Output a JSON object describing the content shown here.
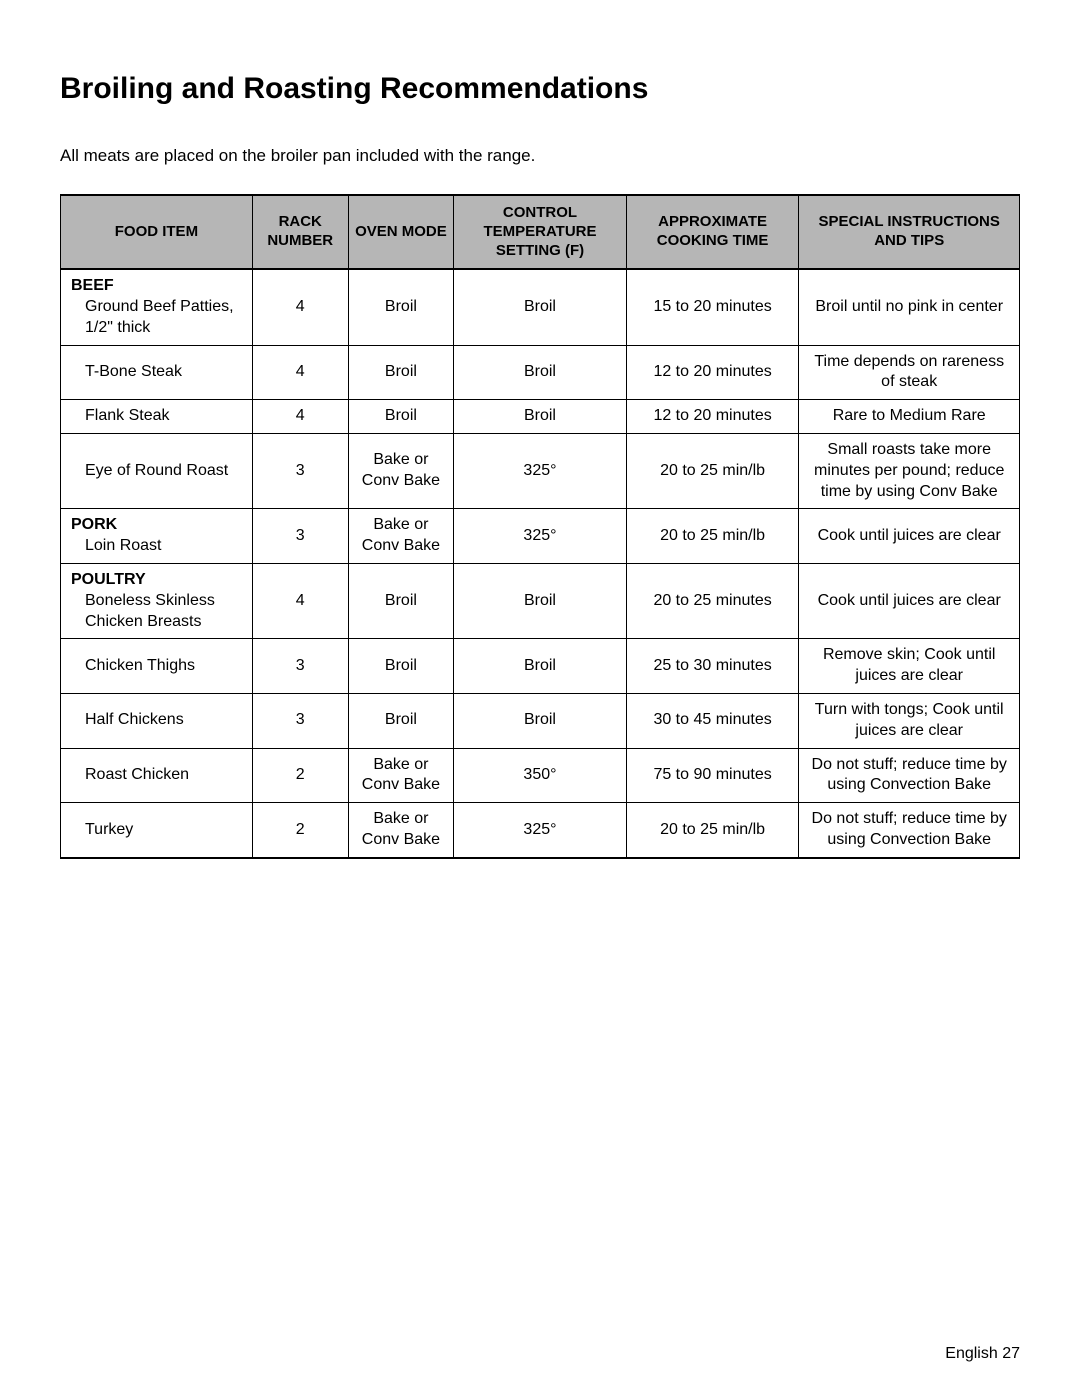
{
  "title": "Broiling and Roasting Recommendations",
  "intro": "All meats are placed on the broiler pan included with the range.",
  "columns": [
    "Food Item",
    "Rack Number",
    "Oven Mode",
    "Control Temperature Setting (F)",
    "Approximate Cooking Time",
    "Special Instructions and Tips"
  ],
  "header_bg": "#b6b6b6",
  "rows": [
    {
      "category": "Beef",
      "item": "Ground Beef Patties, 1/2\" thick",
      "rack": "4",
      "mode": "Broil",
      "temp": "Broil",
      "time": "15 to 20 minutes",
      "tips": "Broil until no pink in center"
    },
    {
      "category": "",
      "item": "T-Bone Steak",
      "rack": "4",
      "mode": "Broil",
      "temp": "Broil",
      "time": "12 to 20 minutes",
      "tips": "Time depends on rareness of steak"
    },
    {
      "category": "",
      "item": "Flank Steak",
      "rack": "4",
      "mode": "Broil",
      "temp": "Broil",
      "time": "12 to 20 minutes",
      "tips": "Rare to Medium Rare"
    },
    {
      "category": "",
      "item": "Eye of Round Roast",
      "rack": "3",
      "mode": "Bake or Conv Bake",
      "temp": "325°",
      "time": "20 to 25 min/lb",
      "tips": "Small roasts take more minutes per pound; reduce time by using Conv Bake"
    },
    {
      "category": "Pork",
      "item": "Loin Roast",
      "rack": "3",
      "mode": "Bake or Conv Bake",
      "temp": "325°",
      "time": "20 to 25 min/lb",
      "tips": "Cook until juices are clear"
    },
    {
      "category": "Poultry",
      "item": "Boneless Skinless Chicken Breasts",
      "rack": "4",
      "mode": "Broil",
      "temp": "Broil",
      "time": "20 to 25 minutes",
      "tips": "Cook until juices are clear"
    },
    {
      "category": "",
      "item": "Chicken Thighs",
      "rack": "3",
      "mode": "Broil",
      "temp": "Broil",
      "time": "25 to 30 minutes",
      "tips": "Remove skin; Cook until juices are clear"
    },
    {
      "category": "",
      "item": "Half Chickens",
      "rack": "3",
      "mode": "Broil",
      "temp": "Broil",
      "time": "30 to 45 minutes",
      "tips": "Turn with tongs; Cook until juices are clear"
    },
    {
      "category": "",
      "item": "Roast Chicken",
      "rack": "2",
      "mode": "Bake or Conv Bake",
      "temp": "350°",
      "time": "75 to 90 minutes",
      "tips": "Do not stuff; reduce time by using Convection Bake"
    },
    {
      "category": "",
      "item": "Turkey",
      "rack": "2",
      "mode": "Bake or Conv Bake",
      "temp": "325°",
      "time": "20 to 25 min/lb",
      "tips": "Do not stuff; reduce time by using Convection Bake"
    }
  ],
  "footer": "English 27"
}
